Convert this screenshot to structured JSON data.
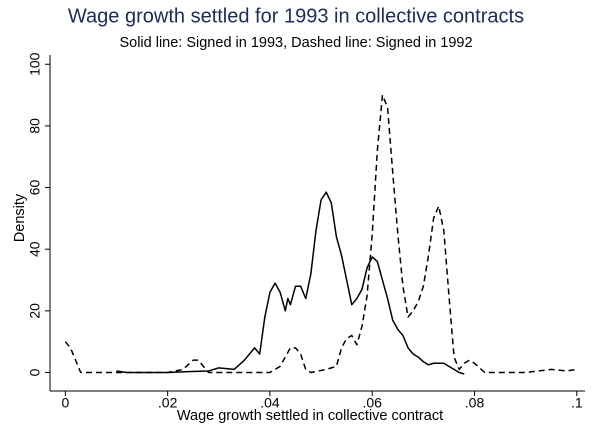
{
  "chart_data": {
    "type": "line",
    "title": "Wage growth settled for 1993 in collective contracts",
    "subtitle": "Solid line: Signed in 1993, Dashed line: Signed in 1992",
    "x_label": "Wage growth settled in collective contract",
    "y_label": "Density",
    "xlim": [
      -0.003,
      0.1016
    ],
    "ylim": [
      -6,
      103
    ],
    "xticks": [
      0,
      {
        "value": 0.02,
        "label": ".02"
      },
      {
        "value": 0.04,
        "label": ".04"
      },
      {
        "value": 0.06,
        "label": ".06"
      },
      {
        "value": 0.08,
        "label": ".08"
      },
      {
        "value": 0.1,
        "label": ".1"
      }
    ],
    "yticks": [
      0,
      20,
      40,
      60,
      80,
      100
    ],
    "grid": false,
    "series": [
      {
        "color": "#000000",
        "dashed": false,
        "x": [
          0.01,
          0.012,
          0.02,
          0.024,
          0.028,
          0.03,
          0.033,
          0.035,
          0.037,
          0.038,
          0.039,
          0.04,
          0.041,
          0.042,
          0.043,
          0.0435,
          0.044,
          0.045,
          0.046,
          0.047,
          0.048,
          0.049,
          0.05,
          0.051,
          0.052,
          0.053,
          0.054,
          0.055,
          0.056,
          0.057,
          0.058,
          0.059,
          0.06,
          0.061,
          0.062,
          0.063,
          0.064,
          0.065,
          0.066,
          0.067,
          0.068,
          0.069,
          0.07,
          0.071,
          0.072,
          0.073,
          0.074,
          0.075,
          0.076,
          0.077,
          0.078
        ],
        "values": [
          0.5,
          0,
          0,
          0.3,
          0.5,
          1.5,
          1,
          4,
          8,
          6,
          18,
          26,
          29,
          26,
          20,
          24,
          22,
          28,
          28,
          24,
          32,
          46,
          56,
          58.5,
          55,
          44,
          38,
          30,
          22,
          24,
          27,
          34,
          37.5,
          36,
          30,
          24,
          17,
          14,
          12,
          8,
          6,
          5,
          3.5,
          2.5,
          3,
          3,
          3,
          2,
          1,
          0,
          -0.5
        ]
      },
      {
        "color": "#000000",
        "dashed": true,
        "x": [
          0.0,
          0.001,
          0.002,
          0.003,
          0.01,
          0.02,
          0.023,
          0.025,
          0.026,
          0.027,
          0.028,
          0.04,
          0.042,
          0.043,
          0.044,
          0.045,
          0.046,
          0.047,
          0.048,
          0.051,
          0.053,
          0.054,
          0.055,
          0.056,
          0.057,
          0.058,
          0.059,
          0.06,
          0.061,
          0.062,
          0.063,
          0.064,
          0.065,
          0.066,
          0.067,
          0.068,
          0.069,
          0.07,
          0.071,
          0.072,
          0.073,
          0.074,
          0.075,
          0.076,
          0.077,
          0.078,
          0.079,
          0.08,
          0.082,
          0.09,
          0.095,
          0.098,
          0.1
        ],
        "values": [
          10,
          8,
          4,
          0,
          0,
          0,
          1,
          4,
          4,
          2,
          0,
          0,
          2,
          5,
          8,
          8,
          6,
          1,
          0,
          1,
          2,
          8,
          11,
          12,
          9,
          15,
          25,
          45,
          72,
          90,
          86,
          65,
          45,
          28,
          18,
          20,
          23,
          28,
          38,
          50,
          54,
          46,
          25,
          5,
          1,
          3,
          4,
          3,
          0,
          0,
          1,
          0.5,
          1
        ]
      }
    ]
  }
}
